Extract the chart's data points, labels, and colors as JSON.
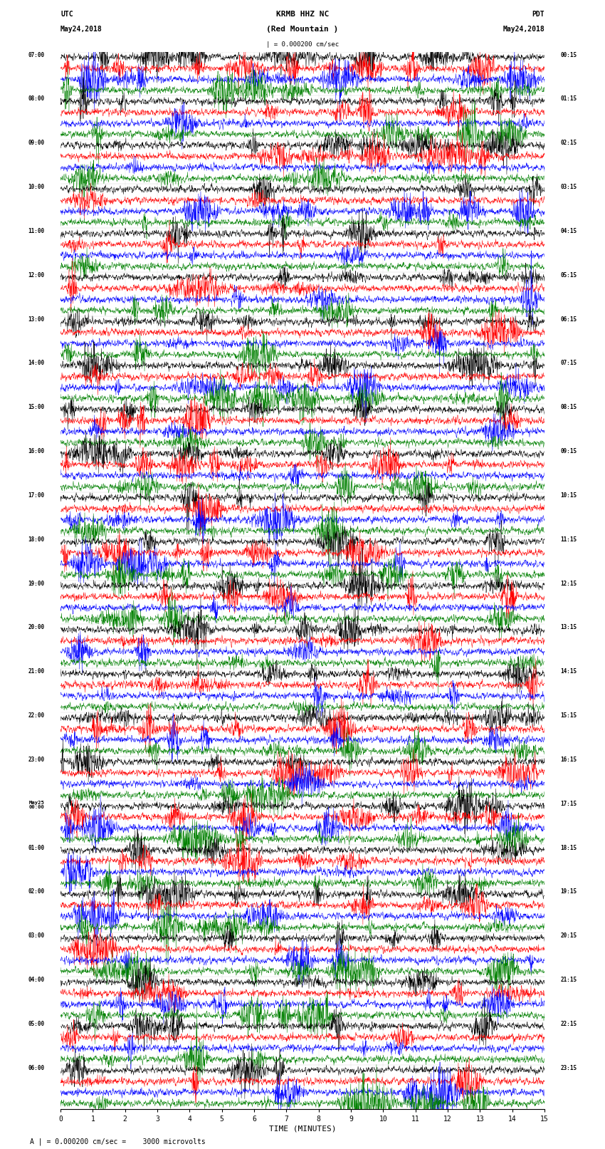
{
  "title_line1": "KRMB HHZ NC",
  "title_line2": "(Red Mountain )",
  "scale_label": "| = 0.000200 cm/sec",
  "left_header_line1": "UTC",
  "left_header_line2": "May24,2018",
  "right_header_line1": "PDT",
  "right_header_line2": "May24,2018",
  "bottom_label": "TIME (MINUTES)",
  "bottom_note": "A | = 0.000200 cm/sec =    3000 microvolts",
  "utc_labels": [
    "07:00",
    "08:00",
    "09:00",
    "10:00",
    "11:00",
    "12:00",
    "13:00",
    "14:00",
    "15:00",
    "16:00",
    "17:00",
    "18:00",
    "19:00",
    "20:00",
    "21:00",
    "22:00",
    "23:00",
    "00:00",
    "01:00",
    "02:00",
    "03:00",
    "04:00",
    "05:00",
    "06:00"
  ],
  "utc_label_has_may25": [
    false,
    false,
    false,
    false,
    false,
    false,
    false,
    false,
    false,
    false,
    false,
    false,
    false,
    false,
    false,
    false,
    false,
    true,
    false,
    false,
    false,
    false,
    false,
    false
  ],
  "pdt_labels": [
    "00:15",
    "01:15",
    "02:15",
    "03:15",
    "04:15",
    "05:15",
    "06:15",
    "07:15",
    "08:15",
    "09:15",
    "10:15",
    "11:15",
    "12:15",
    "13:15",
    "14:15",
    "15:15",
    "16:15",
    "17:15",
    "18:15",
    "19:15",
    "20:15",
    "21:15",
    "22:15",
    "23:15"
  ],
  "trace_colors": [
    "black",
    "red",
    "blue",
    "green"
  ],
  "bg_color": "white",
  "n_hours": 24,
  "n_traces_per_hour": 4,
  "xmin": 0,
  "xmax": 15,
  "xlabel_ticks": [
    0,
    1,
    2,
    3,
    4,
    5,
    6,
    7,
    8,
    9,
    10,
    11,
    12,
    13,
    14,
    15
  ]
}
